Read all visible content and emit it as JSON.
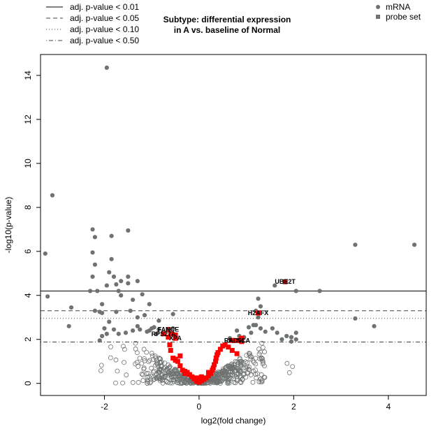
{
  "chart_data": {
    "type": "scatter",
    "title": "Subtype: differential expression\nin A vs. baseline of Normal",
    "xlabel": "log2(fold change)",
    "ylabel": "-log10(p-value)",
    "xlim": [
      -3.35,
      4.8
    ],
    "ylim": [
      -0.55,
      14.95
    ],
    "xticks": [
      -2,
      0,
      2,
      4
    ],
    "yticks": [
      0,
      2,
      4,
      6,
      8,
      10,
      12,
      14
    ],
    "grid": false,
    "threshold_legend": {
      "placement": "top-left",
      "entries": [
        {
          "label": "adj. p-value < 0.01",
          "linestyle": "solid",
          "y": 4.2
        },
        {
          "label": "adj. p-value < 0.05",
          "linestyle": "dashed",
          "y": 3.3
        },
        {
          "label": "adj. p-value < 0.10",
          "linestyle": "dotted",
          "y": 2.95
        },
        {
          "label": "adj. p-value < 0.50",
          "linestyle": "dotdash",
          "y": 1.88
        }
      ]
    },
    "series_legend": {
      "placement": "top-right",
      "entries": [
        {
          "label": "mRNA",
          "marker": "circle",
          "color": "#6e7270"
        },
        {
          "label": "probe set",
          "marker": "square",
          "color": "#6e7270"
        }
      ]
    },
    "colors": {
      "significant": "#6e7270",
      "nonsignificant_stroke": "#6e7270",
      "highlight": "#ff0000",
      "label_square": "#a51010"
    },
    "series": [
      {
        "name": "mRNA",
        "style": "filled",
        "points": [
          [
            -1.95,
            14.35
          ],
          [
            -3.1,
            8.55
          ],
          [
            -3.25,
            5.9
          ],
          [
            -3.2,
            3.95
          ],
          [
            -2.7,
            3.45
          ],
          [
            -2.75,
            2.6
          ],
          [
            -2.25,
            7.0
          ],
          [
            -2.2,
            6.65
          ],
          [
            -1.85,
            6.7
          ],
          [
            -1.5,
            6.95
          ],
          [
            -2.25,
            5.95
          ],
          [
            -2.2,
            5.4
          ],
          [
            -1.85,
            5.65
          ],
          [
            -1.9,
            5.05
          ],
          [
            -1.8,
            4.85
          ],
          [
            -1.75,
            4.5
          ],
          [
            -1.5,
            4.85
          ],
          [
            -1.5,
            4.55
          ],
          [
            -2.25,
            4.85
          ],
          [
            -2.15,
            4.2
          ],
          [
            -2.3,
            4.2
          ],
          [
            -1.7,
            4.2
          ],
          [
            -1.65,
            4.0
          ],
          [
            -1.95,
            4.45
          ],
          [
            -1.65,
            4.65
          ],
          [
            -1.3,
            4.65
          ],
          [
            -1.2,
            4.05
          ],
          [
            -1.4,
            3.8
          ],
          [
            -1.05,
            3.6
          ],
          [
            -2.05,
            3.6
          ],
          [
            -2.1,
            3.25
          ],
          [
            -2.2,
            3.3
          ],
          [
            -2.05,
            3.2
          ],
          [
            -1.75,
            3.25
          ],
          [
            -1.45,
            3.3
          ],
          [
            -1.3,
            3.0
          ],
          [
            -1.15,
            3.1
          ],
          [
            -0.85,
            2.85
          ],
          [
            -0.55,
            3.15
          ],
          [
            -1.9,
            2.8
          ],
          [
            -2.0,
            2.5
          ],
          [
            -1.95,
            2.25
          ],
          [
            -2.05,
            2.15
          ],
          [
            -1.8,
            2.45
          ],
          [
            -1.55,
            2.3
          ],
          [
            -1.4,
            2.4
          ],
          [
            -1.25,
            2.45
          ],
          [
            -1.1,
            2.35
          ],
          [
            -1.0,
            2.5
          ],
          [
            -0.95,
            2.55
          ],
          [
            -0.85,
            2.45
          ],
          [
            -0.75,
            2.3
          ],
          [
            -0.65,
            2.45
          ],
          [
            -0.55,
            2.5
          ],
          [
            -1.3,
            2.6
          ],
          [
            -1.05,
            2.4
          ],
          [
            -2.1,
            1.95
          ],
          [
            -1.7,
            2.25
          ],
          [
            -0.9,
            2.25
          ],
          [
            1.6,
            4.45
          ],
          [
            2.05,
            4.2
          ],
          [
            2.55,
            4.2
          ],
          [
            1.25,
            3.85
          ],
          [
            1.3,
            3.5
          ],
          [
            1.2,
            3.3
          ],
          [
            1.25,
            3.0
          ],
          [
            1.15,
            2.65
          ],
          [
            1.3,
            2.5
          ],
          [
            1.05,
            2.55
          ],
          [
            1.2,
            2.65
          ],
          [
            1.65,
            2.3
          ],
          [
            1.85,
            2.15
          ],
          [
            1.95,
            2.1
          ],
          [
            1.75,
            2.0
          ],
          [
            2.05,
            2.3
          ],
          [
            2.05,
            2.0
          ],
          [
            1.95,
            1.9
          ],
          [
            1.1,
            2.3
          ],
          [
            0.95,
            2.1
          ],
          [
            0.8,
            2.4
          ],
          [
            0.85,
            2.15
          ],
          [
            0.65,
            2.05
          ],
          [
            3.3,
            6.3
          ],
          [
            4.55,
            6.3
          ],
          [
            3.3,
            2.95
          ],
          [
            3.7,
            2.6
          ],
          [
            1.55,
            2.5
          ],
          [
            1.4,
            2.35
          ]
        ]
      },
      {
        "name": "probe set",
        "style": "highlight",
        "points": [
          [
            -0.05,
            0.1
          ],
          [
            0.0,
            0.05
          ],
          [
            0.05,
            0.12
          ],
          [
            -0.1,
            0.2
          ],
          [
            0.1,
            0.18
          ],
          [
            -0.15,
            0.3
          ],
          [
            0.15,
            0.25
          ],
          [
            -0.2,
            0.4
          ],
          [
            0.2,
            0.35
          ],
          [
            -0.25,
            0.5
          ],
          [
            0.25,
            0.45
          ],
          [
            -0.3,
            0.55
          ],
          [
            0.28,
            0.6
          ],
          [
            0.3,
            0.7
          ],
          [
            0.32,
            0.85
          ],
          [
            0.35,
            1.0
          ],
          [
            0.36,
            1.15
          ],
          [
            0.38,
            1.3
          ],
          [
            0.4,
            1.4
          ],
          [
            0.45,
            1.55
          ],
          [
            0.5,
            1.7
          ],
          [
            0.55,
            1.75
          ],
          [
            0.62,
            1.65
          ],
          [
            0.7,
            1.5
          ],
          [
            0.8,
            1.35
          ],
          [
            0.7,
            1.95
          ],
          [
            0.9,
            1.9
          ],
          [
            0.9,
            2.05
          ],
          [
            -0.35,
            0.6
          ],
          [
            -0.4,
            0.8
          ],
          [
            -0.45,
            1.0
          ],
          [
            -0.5,
            1.05
          ],
          [
            -0.55,
            1.15
          ],
          [
            -0.6,
            1.5
          ],
          [
            -0.62,
            1.75
          ],
          [
            -0.5,
            1.1
          ],
          [
            -0.4,
            1.25
          ],
          [
            -0.65,
            2.1
          ],
          [
            -0.6,
            2.25
          ],
          [
            -0.5,
            2.2
          ],
          [
            -0.3,
            0.45
          ],
          [
            0.2,
            0.5
          ],
          [
            -0.05,
            0.25
          ],
          [
            0.05,
            0.3
          ]
        ]
      },
      {
        "name": "labeled",
        "style": "label",
        "points": [
          {
            "x": 1.82,
            "y": 4.62,
            "label": "UBE2T"
          },
          {
            "x": 1.25,
            "y": 3.2,
            "label": "H2AFX"
          },
          {
            "x": -0.65,
            "y": 2.45,
            "label": "FANCE"
          },
          {
            "x": -0.75,
            "y": 2.25,
            "label": "RPS27A"
          },
          {
            "x": -0.5,
            "y": 2.05,
            "label": "XPA"
          },
          {
            "x": 0.85,
            "y": 1.95,
            "label": "FANCA"
          },
          {
            "x": 0.75,
            "y": 1.95,
            "label": "RAD51"
          }
        ]
      }
    ]
  }
}
